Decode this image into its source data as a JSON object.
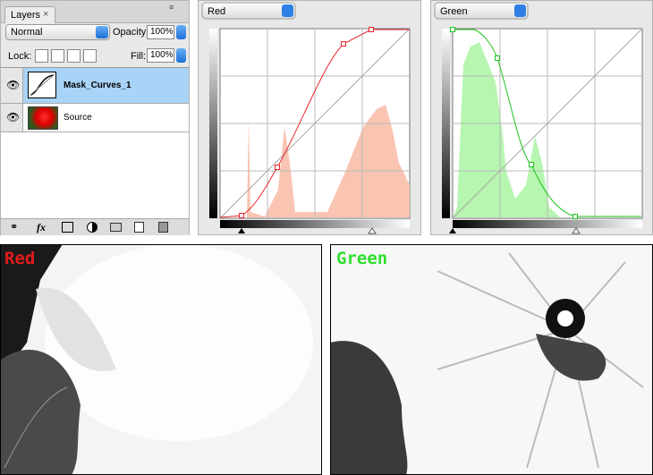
{
  "layers_panel": {
    "tab": "Layers",
    "blend_mode": "Normal",
    "opacity_label": "Opacity:",
    "opacity": "100%",
    "lock_label": "Lock:",
    "fill_label": "Fill:",
    "fill": "100%",
    "layers": [
      {
        "name": "Mask_Curves_1"
      },
      {
        "name": "Source"
      }
    ],
    "fx": "fx"
  },
  "curves_panels": [
    {
      "channel": "Red"
    },
    {
      "channel": "Green"
    }
  ],
  "images": [
    {
      "label": "Red"
    },
    {
      "label": "Green"
    }
  ]
}
